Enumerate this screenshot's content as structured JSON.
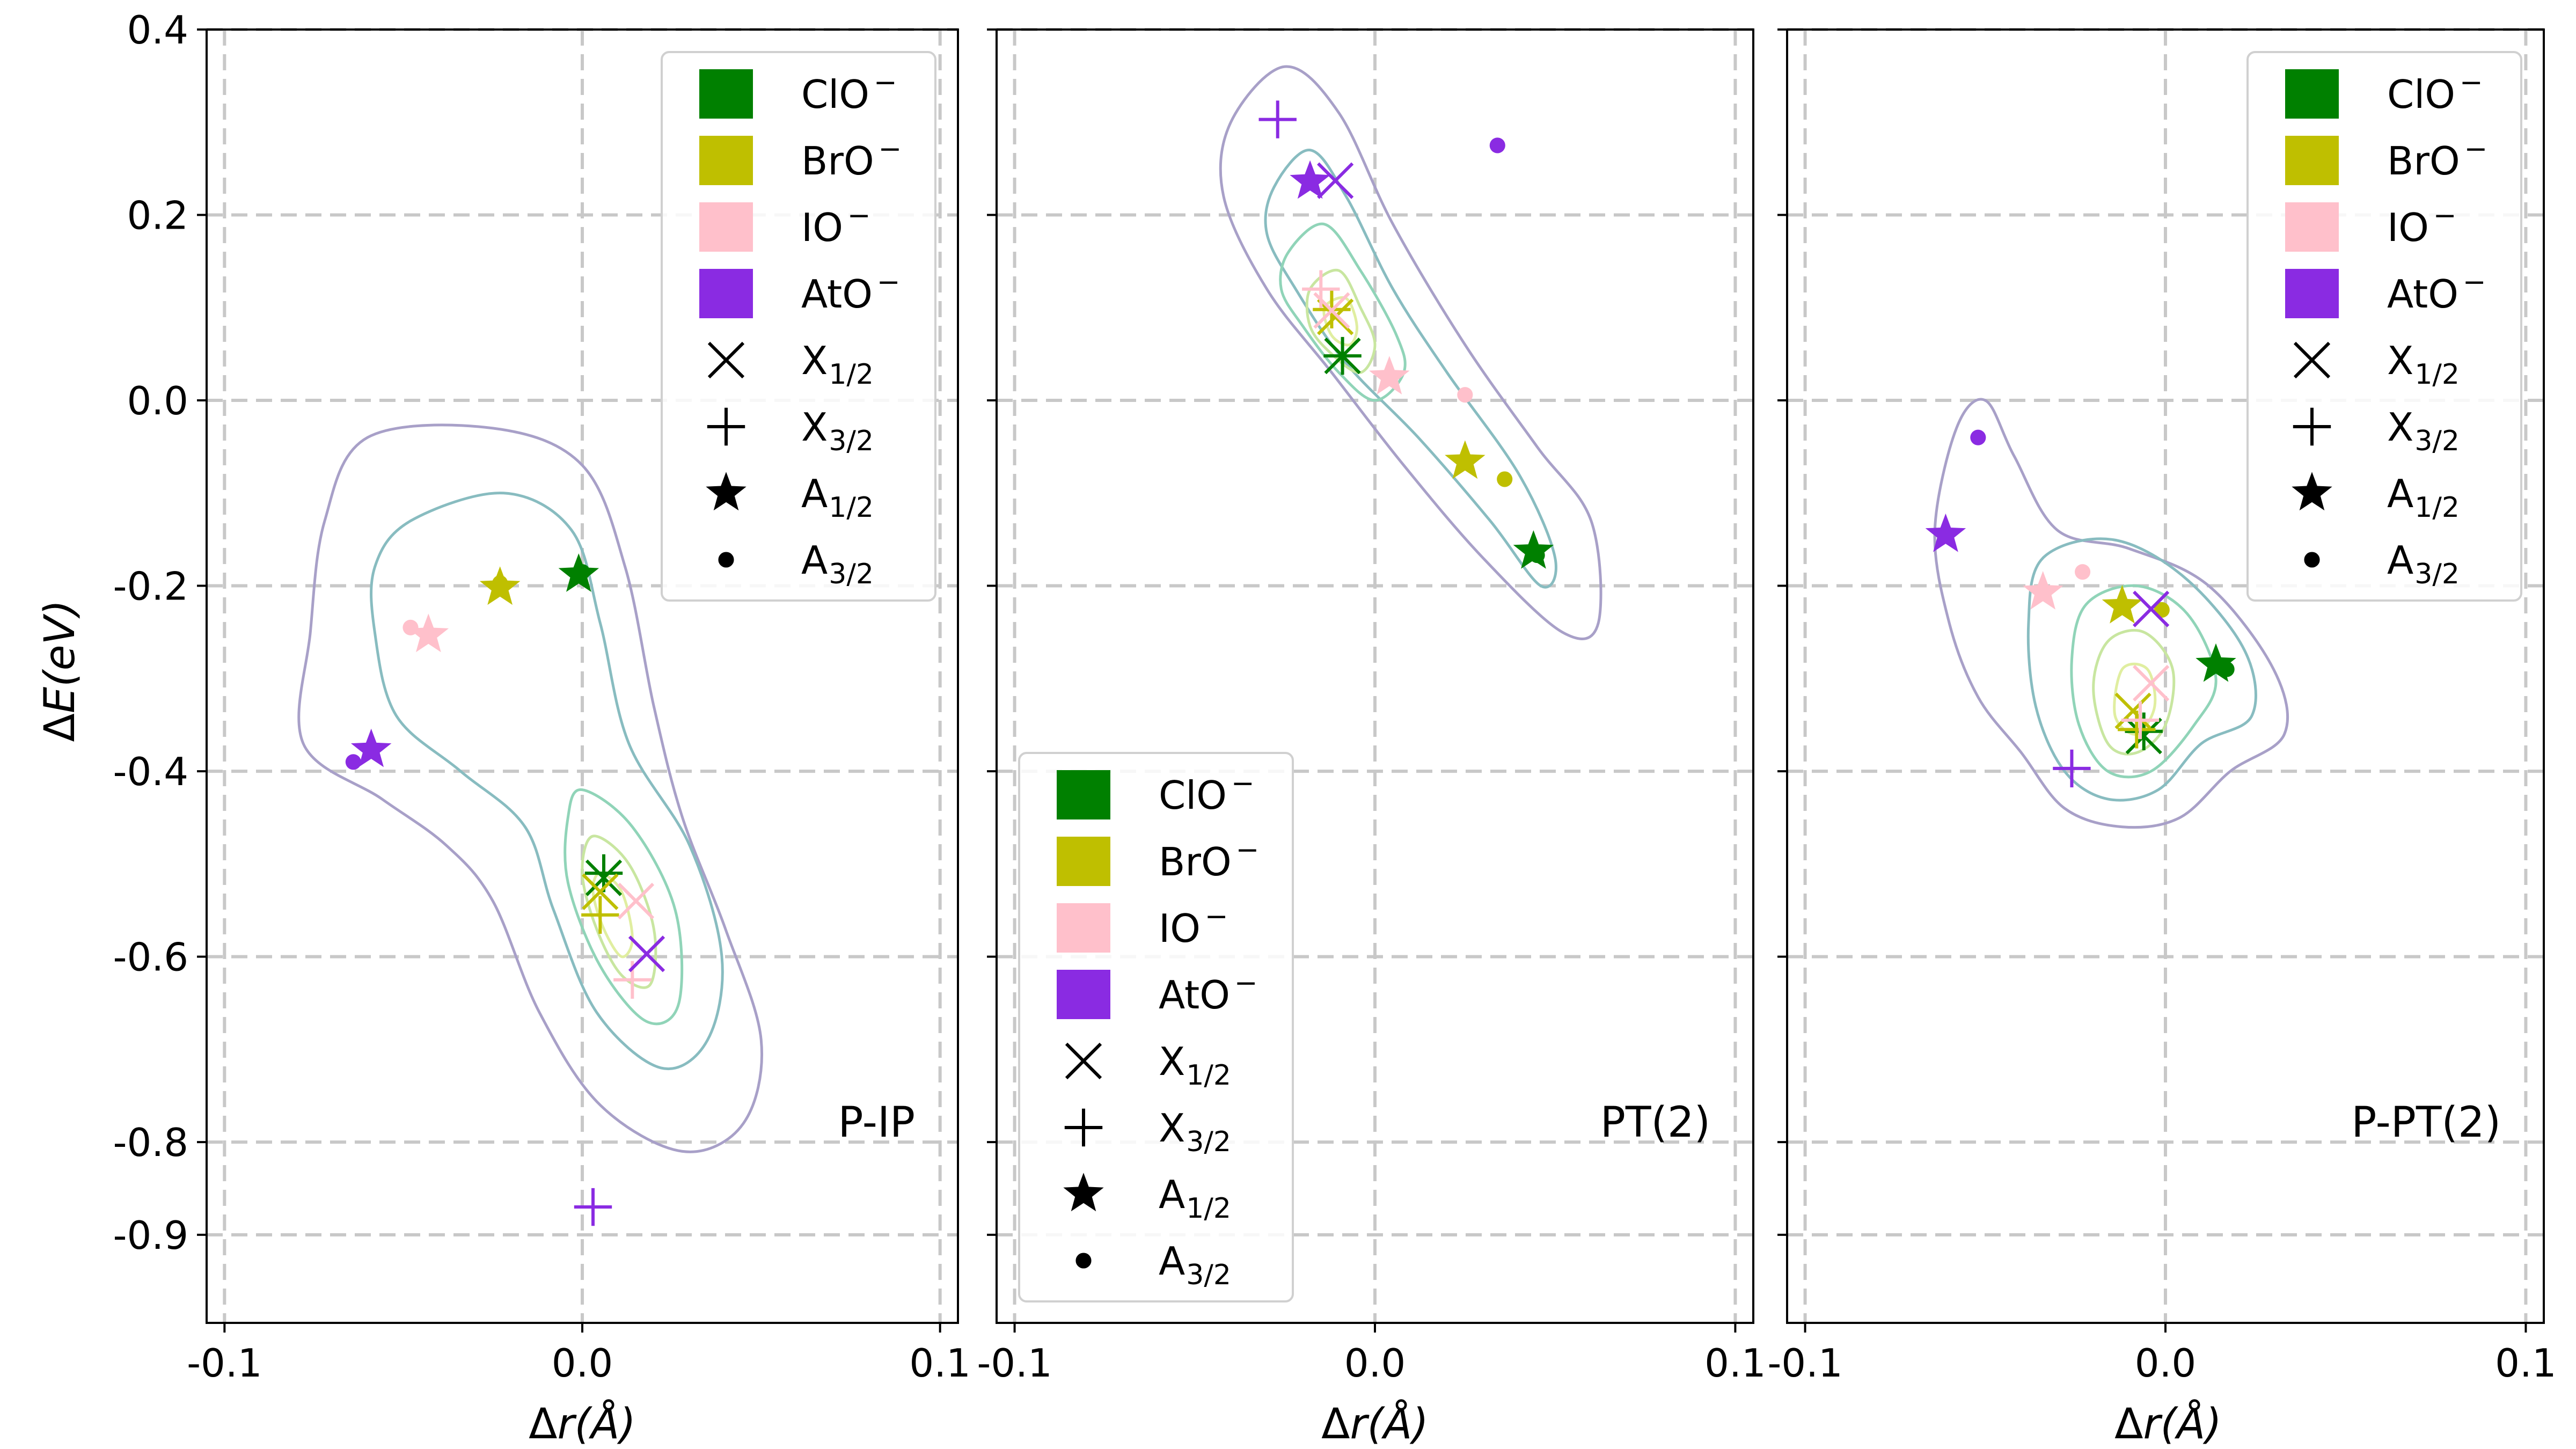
{
  "chart_data": {
    "type": "scatter",
    "shared": {
      "xlabel_prefix": "Δ",
      "xlabel_var": "r",
      "xlabel_unit": "(Å)",
      "ylabel_prefix": "Δ",
      "ylabel_var": "E",
      "ylabel_unit": "(eV)",
      "xlim": [
        -0.105,
        0.105
      ],
      "ylim": [
        -0.995,
        0.4
      ],
      "xticks": [
        -0.1,
        0.0,
        0.1
      ],
      "xtick_labels": [
        "-0.1",
        "0.0",
        "0.1"
      ],
      "yticks": [
        0.4,
        0.2,
        0.0,
        -0.2,
        -0.4,
        -0.6,
        -0.8,
        -0.9
      ],
      "ytick_labels": [
        "0.4",
        "0.2",
        "0.0",
        "-0.2",
        "-0.4",
        "-0.6",
        "-0.8",
        "-0.9"
      ],
      "grid": true,
      "colors": {
        "ClO": "#008000",
        "BrO": "#bfbf00",
        "IO": "#ffc0cb",
        "AtO": "#8a2be2"
      },
      "contour_colors": [
        "#a8a0c8",
        "#88bcc0",
        "#90d4b8",
        "#c8e6a0",
        "#e0eea0"
      ]
    },
    "legend": [
      {
        "kind": "color",
        "species": "ClO",
        "text": "ClO",
        "sup": "−"
      },
      {
        "kind": "color",
        "species": "BrO",
        "text": "BrO",
        "sup": "−"
      },
      {
        "kind": "color",
        "species": "IO",
        "text": "IO",
        "sup": "−"
      },
      {
        "kind": "color",
        "species": "AtO",
        "text": "AtO",
        "sup": "−"
      },
      {
        "kind": "marker",
        "marker": "x",
        "text": "X",
        "sub": "1/2"
      },
      {
        "kind": "marker",
        "marker": "plus",
        "text": "X",
        "sub": "3/2"
      },
      {
        "kind": "marker",
        "marker": "star",
        "text": "A",
        "sub": "1/2"
      },
      {
        "kind": "marker",
        "marker": "dot",
        "text": "A",
        "sub": "3/2"
      }
    ],
    "panels": [
      {
        "label": "P-IP",
        "legend_position": "top-right",
        "points": [
          {
            "species": "ClO",
            "state": "X1/2",
            "x": 0.006,
            "y": -0.515
          },
          {
            "species": "ClO",
            "state": "X3/2",
            "x": 0.006,
            "y": -0.51
          },
          {
            "species": "ClO",
            "state": "A1/2",
            "x": -0.001,
            "y": -0.188
          },
          {
            "species": "ClO",
            "state": "A3/2",
            "x": 0.0,
            "y": -0.185
          },
          {
            "species": "BrO",
            "state": "X1/2",
            "x": 0.005,
            "y": -0.53
          },
          {
            "species": "BrO",
            "state": "X3/2",
            "x": 0.005,
            "y": -0.555
          },
          {
            "species": "BrO",
            "state": "A1/2",
            "x": -0.023,
            "y": -0.202
          },
          {
            "species": "BrO",
            "state": "A3/2",
            "x": -0.023,
            "y": -0.197
          },
          {
            "species": "IO",
            "state": "X1/2",
            "x": 0.015,
            "y": -0.54
          },
          {
            "species": "IO",
            "state": "X3/2",
            "x": 0.014,
            "y": -0.625
          },
          {
            "species": "IO",
            "state": "A1/2",
            "x": -0.043,
            "y": -0.253
          },
          {
            "species": "IO",
            "state": "A3/2",
            "x": -0.048,
            "y": -0.245
          },
          {
            "species": "AtO",
            "state": "X1/2",
            "x": 0.018,
            "y": -0.597
          },
          {
            "species": "AtO",
            "state": "X3/2",
            "x": 0.003,
            "y": -0.87
          },
          {
            "species": "AtO",
            "state": "A1/2",
            "x": -0.059,
            "y": -0.377
          },
          {
            "species": "AtO",
            "state": "A3/2",
            "x": -0.064,
            "y": -0.39
          }
        ]
      },
      {
        "label": "PT(2)",
        "legend_position": "bottom-left",
        "points": [
          {
            "species": "ClO",
            "state": "X1/2",
            "x": -0.009,
            "y": 0.048
          },
          {
            "species": "ClO",
            "state": "X3/2",
            "x": -0.009,
            "y": 0.048
          },
          {
            "species": "ClO",
            "state": "A1/2",
            "x": 0.044,
            "y": -0.163
          },
          {
            "species": "ClO",
            "state": "A3/2",
            "x": 0.045,
            "y": -0.167
          },
          {
            "species": "BrO",
            "state": "X1/2",
            "x": -0.011,
            "y": 0.09
          },
          {
            "species": "BrO",
            "state": "X3/2",
            "x": -0.012,
            "y": 0.098
          },
          {
            "species": "BrO",
            "state": "A1/2",
            "x": 0.025,
            "y": -0.066
          },
          {
            "species": "BrO",
            "state": "A3/2",
            "x": 0.036,
            "y": -0.085
          },
          {
            "species": "IO",
            "state": "X1/2",
            "x": -0.012,
            "y": 0.097
          },
          {
            "species": "IO",
            "state": "X3/2",
            "x": -0.015,
            "y": 0.12
          },
          {
            "species": "IO",
            "state": "A1/2",
            "x": 0.004,
            "y": 0.025
          },
          {
            "species": "IO",
            "state": "A3/2",
            "x": 0.025,
            "y": 0.006
          },
          {
            "species": "AtO",
            "state": "X1/2",
            "x": -0.011,
            "y": 0.237
          },
          {
            "species": "AtO",
            "state": "X3/2",
            "x": -0.027,
            "y": 0.303
          },
          {
            "species": "AtO",
            "state": "A1/2",
            "x": -0.018,
            "y": 0.236
          },
          {
            "species": "AtO",
            "state": "A3/2",
            "x": 0.034,
            "y": 0.275
          }
        ]
      },
      {
        "label": "P-PT(2)",
        "legend_position": "top-right",
        "points": [
          {
            "species": "ClO",
            "state": "X1/2",
            "x": -0.006,
            "y": -0.362
          },
          {
            "species": "ClO",
            "state": "X3/2",
            "x": -0.006,
            "y": -0.357
          },
          {
            "species": "ClO",
            "state": "A1/2",
            "x": 0.014,
            "y": -0.285
          },
          {
            "species": "ClO",
            "state": "A3/2",
            "x": 0.017,
            "y": -0.29
          },
          {
            "species": "BrO",
            "state": "X1/2",
            "x": -0.009,
            "y": -0.335
          },
          {
            "species": "BrO",
            "state": "X3/2",
            "x": -0.008,
            "y": -0.355
          },
          {
            "species": "BrO",
            "state": "A1/2",
            "x": -0.012,
            "y": -0.222
          },
          {
            "species": "BrO",
            "state": "A3/2",
            "x": -0.001,
            "y": -0.226
          },
          {
            "species": "IO",
            "state": "X1/2",
            "x": -0.004,
            "y": -0.305
          },
          {
            "species": "IO",
            "state": "X3/2",
            "x": -0.007,
            "y": -0.345
          },
          {
            "species": "IO",
            "state": "A1/2",
            "x": -0.034,
            "y": -0.207
          },
          {
            "species": "IO",
            "state": "A3/2",
            "x": -0.023,
            "y": -0.185
          },
          {
            "species": "AtO",
            "state": "X1/2",
            "x": -0.004,
            "y": -0.225
          },
          {
            "species": "AtO",
            "state": "X3/2",
            "x": -0.026,
            "y": -0.397
          },
          {
            "species": "AtO",
            "state": "A1/2",
            "x": -0.061,
            "y": -0.145
          },
          {
            "species": "AtO",
            "state": "A3/2",
            "x": -0.052,
            "y": -0.04
          }
        ]
      }
    ]
  }
}
